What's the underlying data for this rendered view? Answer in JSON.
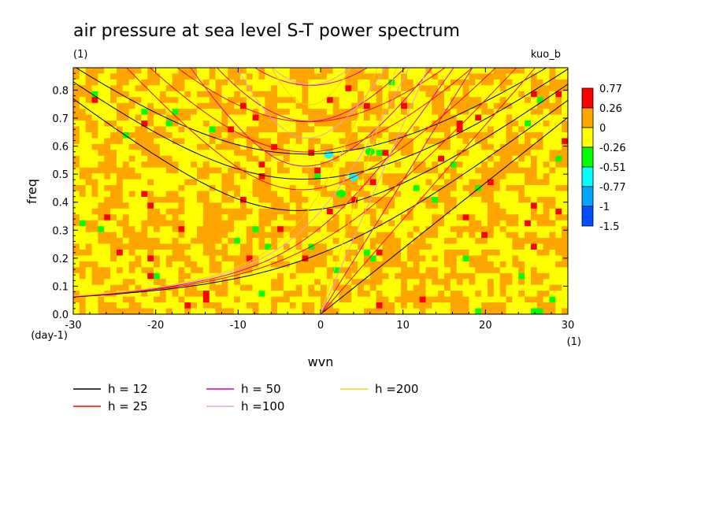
{
  "chart_data": {
    "type": "heatmap",
    "title": "air pressure at sea level S-T power spectrum",
    "subtitle": "(1)",
    "corner_label": "kuo_b",
    "xlabel": "wvn",
    "ylabel": "freq",
    "x_unit": "(1)",
    "y_unit": "(day-1)",
    "xlim": [
      -30,
      30
    ],
    "ylim": [
      0,
      0.88
    ],
    "x_ticks": [
      "-30",
      "-20",
      "-10",
      "0",
      "10",
      "20",
      "30"
    ],
    "y_ticks": [
      "0.0",
      "0.1",
      "0.2",
      "0.3",
      "0.4",
      "0.5",
      "0.6",
      "0.7",
      "0.8"
    ],
    "colorbar": {
      "labels": [
        "0.77",
        "0.26",
        "0",
        "-0.26",
        "-0.51",
        "-0.77",
        "-1",
        "-1.5"
      ],
      "colors": [
        "#ff0000",
        "#ffa500",
        "#ffff00",
        "#00ff00",
        "#00ffff",
        "#00a5ff",
        "#0050ff"
      ],
      "placement": "right"
    },
    "dispersion_curves": [
      {
        "label": "h = 12",
        "color": "#000000"
      },
      {
        "label": "h = 25",
        "color": "#ff0000"
      },
      {
        "label": "h = 50",
        "color": "#e000a0"
      },
      {
        "label": "h =100",
        "color": "#e0a0e0"
      },
      {
        "label": "h =200",
        "color": "#ffd000"
      }
    ]
  }
}
